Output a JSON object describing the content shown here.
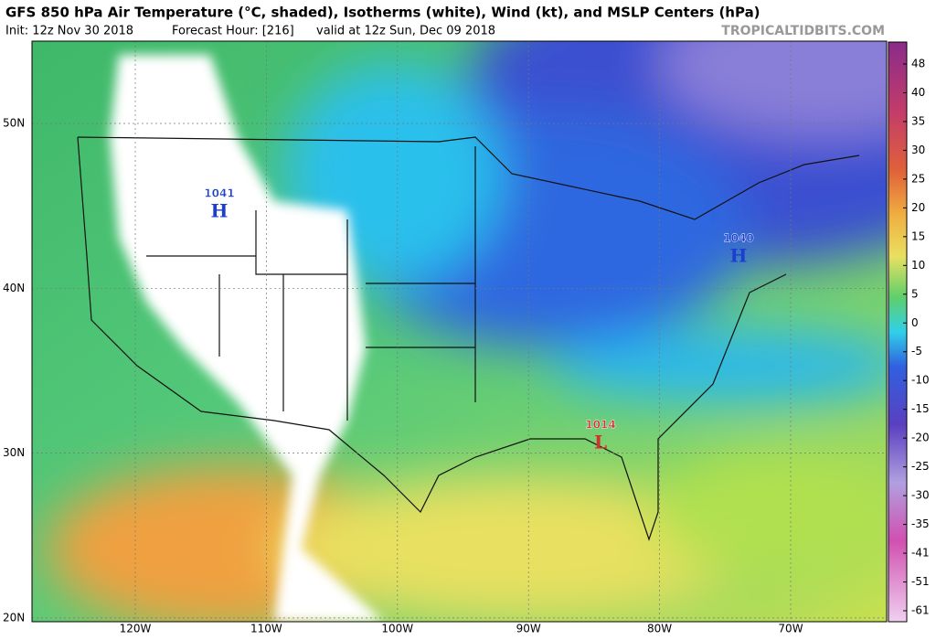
{
  "header": {
    "title": "GFS 850 hPa Air Temperature (°C, shaded), Isotherms (white), Wind (kt), and MSLP Centers (hPa)",
    "init": "Init: 12z Nov 30 2018",
    "forecast": "Forecast Hour: [216]",
    "valid": "valid at 12z Sun, Dec 09 2018",
    "site": "TROPICALTIDBITS.COM"
  },
  "map": {
    "lat_labels": [
      "50N",
      "40N",
      "30N",
      "20N"
    ],
    "lon_labels": [
      "120W",
      "110W",
      "100W",
      "90W",
      "80W",
      "70W"
    ],
    "centers": [
      {
        "kind": "H",
        "pressure": "1041"
      },
      {
        "kind": "H",
        "pressure": "1040"
      },
      {
        "kind": "L",
        "pressure": "1014"
      }
    ]
  },
  "colorbar": {
    "ticks": [
      48,
      40,
      35,
      30,
      25,
      20,
      15,
      10,
      5,
      0,
      -5,
      -10,
      -15,
      -20,
      -25,
      -30,
      -35,
      -41,
      -51,
      -61
    ]
  }
}
